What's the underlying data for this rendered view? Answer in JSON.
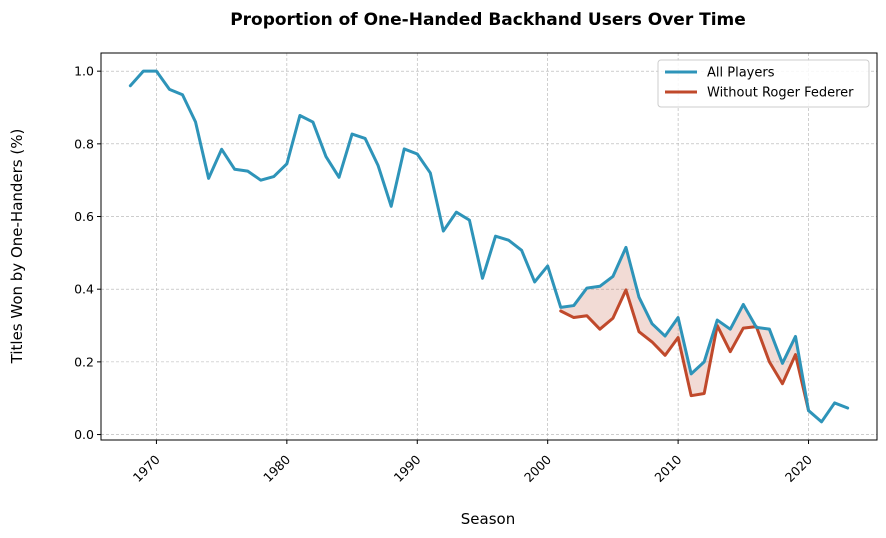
{
  "chart_data": {
    "type": "line",
    "title": "Proportion of One-Handed Backhand Users Over Time",
    "xlabel": "Season",
    "ylabel": "Titles Won by One-Handers (%)",
    "xlim": [
      1965.75,
      2025.25
    ],
    "ylim": [
      -0.015,
      1.05
    ],
    "xticks": [
      1970,
      1980,
      1990,
      2000,
      2010,
      2020
    ],
    "yticks": [
      "0.0",
      "0.2",
      "0.4",
      "0.6",
      "0.8",
      "1.0"
    ],
    "grid": true,
    "legend_position": "upper right",
    "fill_between": {
      "between": [
        "All Players",
        "Without Roger Federer"
      ],
      "color": "#c0492b",
      "opacity": 0.2
    },
    "series": [
      {
        "name": "All Players",
        "color": "#2e94b9",
        "x": [
          1968,
          1969,
          1970,
          1971,
          1972,
          1973,
          1974,
          1975,
          1976,
          1977,
          1978,
          1979,
          1980,
          1981,
          1982,
          1983,
          1984,
          1985,
          1986,
          1987,
          1988,
          1989,
          1990,
          1991,
          1992,
          1993,
          1994,
          1995,
          1996,
          1997,
          1998,
          1999,
          2000,
          2001,
          2002,
          2003,
          2004,
          2005,
          2006,
          2007,
          2008,
          2009,
          2010,
          2011,
          2012,
          2013,
          2014,
          2015,
          2016,
          2017,
          2018,
          2019,
          2020,
          2021,
          2022,
          2023
        ],
        "y": [
          0.96,
          1.0,
          1.0,
          0.95,
          0.935,
          0.86,
          0.705,
          0.785,
          0.73,
          0.725,
          0.7,
          0.71,
          0.745,
          0.878,
          0.86,
          0.765,
          0.708,
          0.827,
          0.815,
          0.74,
          0.628,
          0.786,
          0.772,
          0.72,
          0.56,
          0.612,
          0.59,
          0.43,
          0.546,
          0.535,
          0.507,
          0.42,
          0.464,
          0.35,
          0.355,
          0.403,
          0.408,
          0.435,
          0.515,
          0.378,
          0.305,
          0.271,
          0.322,
          0.167,
          0.2,
          0.315,
          0.29,
          0.358,
          0.295,
          0.29,
          0.196,
          0.27,
          0.066,
          0.035,
          0.087,
          0.073
        ]
      },
      {
        "name": "Without Roger Federer",
        "color": "#c0492b",
        "x": [
          2001,
          2002,
          2003,
          2004,
          2005,
          2006,
          2007,
          2008,
          2009,
          2010,
          2011,
          2012,
          2013,
          2014,
          2015,
          2016,
          2017,
          2018,
          2019,
          2020
        ],
        "y": [
          0.34,
          0.322,
          0.327,
          0.29,
          0.32,
          0.398,
          0.283,
          0.255,
          0.218,
          0.267,
          0.107,
          0.113,
          0.3,
          0.228,
          0.293,
          0.297,
          0.2,
          0.14,
          0.22,
          0.066
        ]
      }
    ]
  }
}
